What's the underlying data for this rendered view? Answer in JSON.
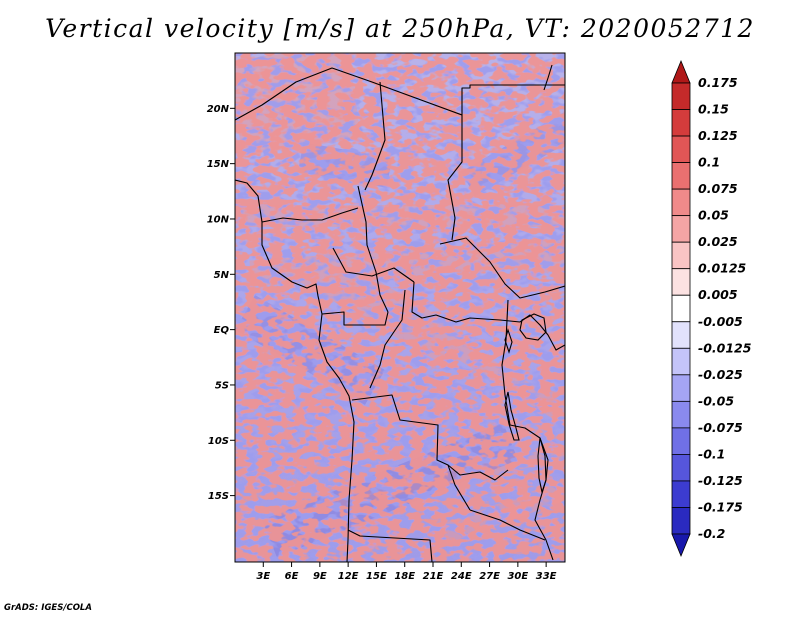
{
  "title": "Vertical velocity [m/s] at 250hPa, VT: 2020052712",
  "footer": "GrADS: IGES/COLA",
  "chart_data": {
    "type": "heatmap",
    "variable": "Vertical velocity",
    "units": "m/s",
    "level": "250hPa",
    "valid_time": "2020052712",
    "lon_range": [
      0,
      35
    ],
    "lat_range": [
      -21,
      25
    ],
    "x_ticks": [
      {
        "lon": 3,
        "label": "3E"
      },
      {
        "lon": 6,
        "label": "6E"
      },
      {
        "lon": 9,
        "label": "9E"
      },
      {
        "lon": 12,
        "label": "12E"
      },
      {
        "lon": 15,
        "label": "15E"
      },
      {
        "lon": 18,
        "label": "18E"
      },
      {
        "lon": 21,
        "label": "21E"
      },
      {
        "lon": 24,
        "label": "24E"
      },
      {
        "lon": 27,
        "label": "27E"
      },
      {
        "lon": 30,
        "label": "30E"
      },
      {
        "lon": 33,
        "label": "33E"
      }
    ],
    "y_ticks": [
      {
        "lat": 20,
        "label": "20N"
      },
      {
        "lat": 15,
        "label": "15N"
      },
      {
        "lat": 10,
        "label": "10N"
      },
      {
        "lat": 5,
        "label": "5N"
      },
      {
        "lat": 0,
        "label": "EQ"
      },
      {
        "lat": -5,
        "label": "5S"
      },
      {
        "lat": -10,
        "label": "10S"
      },
      {
        "lat": -15,
        "label": "15S"
      }
    ],
    "colorbar": {
      "orientation": "vertical",
      "labels": [
        "0.175",
        "0.15",
        "0.125",
        "0.1",
        "0.075",
        "0.05",
        "0.025",
        "0.0125",
        "0.005",
        "-0.005",
        "-0.0125",
        "-0.025",
        "-0.05",
        "-0.075",
        "-0.1",
        "-0.125",
        "-0.175",
        "-0.2"
      ],
      "colors": [
        "#b01818",
        "#c42a2a",
        "#d43c3c",
        "#e15656",
        "#ea7070",
        "#f08a8a",
        "#f5a5a5",
        "#f9c4c4",
        "#fce2e2",
        "#ffffff",
        "#e2e2fc",
        "#c4c4f9",
        "#a5a5f4",
        "#8a8aee",
        "#7070e6",
        "#5656dc",
        "#3c3cd0",
        "#2a2ac0",
        "#1818ac"
      ]
    }
  }
}
